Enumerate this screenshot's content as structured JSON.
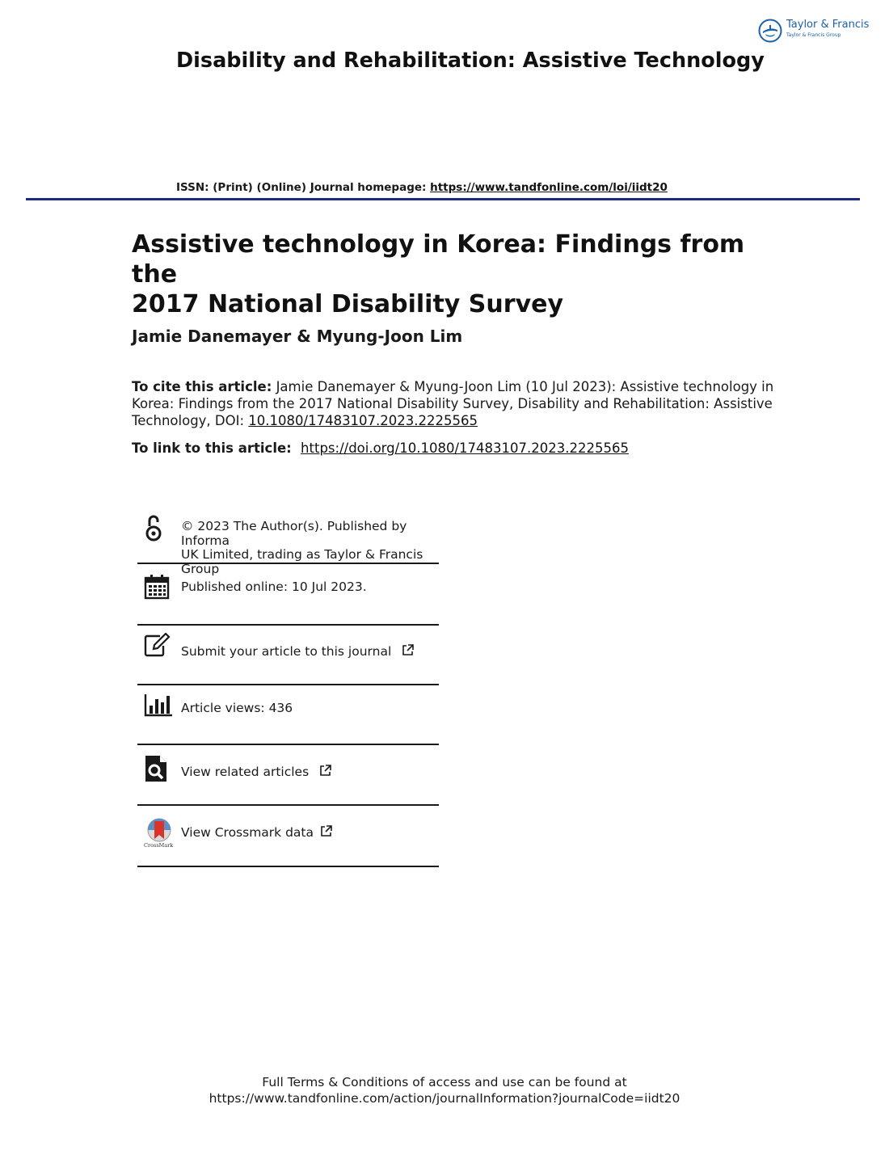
{
  "publisher": {
    "name": "Taylor & Francis",
    "subname": "Taylor & Francis Group",
    "logo_icon": "taylor-francis-logo-icon"
  },
  "journal": {
    "title": "Disability and Rehabilitation: Assistive Technology",
    "issn_text": "ISSN: (Print) (Online) Journal homepage: ",
    "homepage_url": "https://www.tandfonline.com/loi/iidt20"
  },
  "article": {
    "title_line1": "Assistive technology in Korea: Findings from the",
    "title_line2": "2017 National Disability Survey",
    "authors": "Jamie Danemayer & Myung-Joon Lim",
    "cite_label": "To cite this article:",
    "cite_text": "Jamie Danemayer & Myung-Joon Lim (10 Jul 2023): Assistive technology in Korea: Findings from the 2017 National Disability Survey, Disability and Rehabilitation: Assistive Technology, DOI: ",
    "doi": "10.1080/17483107.2023.2225565",
    "link_label": "To link to this article:",
    "link_url": "https://doi.org/10.1080/17483107.2023.2225565"
  },
  "info": {
    "open_access": {
      "icon": "open-access-icon",
      "line1": "© 2023 The Author(s). Published by Informa",
      "line2": "UK Limited, trading as Taylor & Francis",
      "line3": "Group"
    },
    "published": {
      "icon": "calendar-icon",
      "text": "Published online: 10 Jul 2023."
    },
    "submit": {
      "icon": "edit-icon",
      "text": "Submit your article to this journal"
    },
    "views": {
      "icon": "bar-chart-icon",
      "text": "Article views: 436"
    },
    "related": {
      "icon": "search-document-icon",
      "text": "View related articles"
    },
    "crossmark": {
      "icon": "crossmark-icon",
      "text": "View Crossmark data",
      "logo_text": "CrossMark"
    }
  },
  "footer": {
    "line1": "Full Terms & Conditions of access and use can be found at",
    "line2": "https://www.tandfonline.com/action/journalInformation?journalCode=iidt20"
  },
  "colors": {
    "rule": "#1d2a7d",
    "publisher": "#1b62ad"
  }
}
